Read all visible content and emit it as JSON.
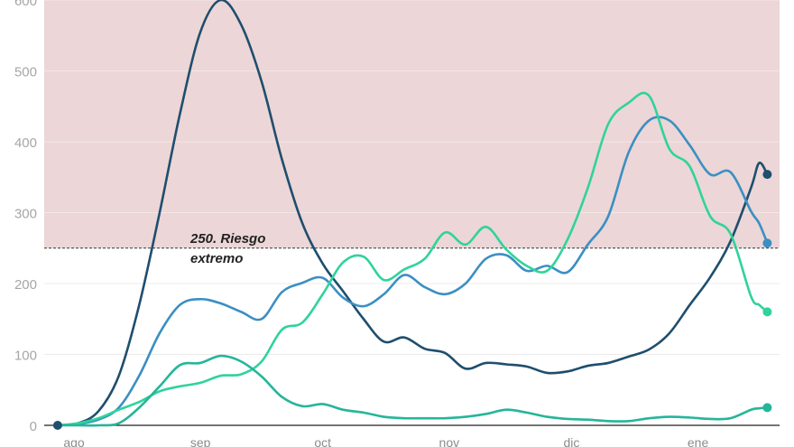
{
  "chart_data": {
    "type": "line",
    "title": "",
    "xlabel": "",
    "ylabel": "",
    "ylim": [
      0,
      600
    ],
    "yticks": [
      "0",
      "100",
      "200",
      "300",
      "400",
      "500",
      "600"
    ],
    "xticks": [
      {
        "label": "ago",
        "date": "08-01"
      },
      {
        "label": "sep",
        "date": "09-01"
      },
      {
        "label": "oct",
        "date": "10-01"
      },
      {
        "label": "nov",
        "date": "11-01"
      },
      {
        "label": "dic",
        "date": "12-01"
      },
      {
        "label": "ene",
        "date": "01-01"
      }
    ],
    "grid": true,
    "threshold": {
      "value": 250,
      "label_line1": "250. Riesgo",
      "label_line2": "extremo",
      "zone_color": "#ecd6d7"
    },
    "x": [
      "07-28",
      "08-02",
      "08-07",
      "08-12",
      "08-17",
      "08-22",
      "08-27",
      "09-01",
      "09-06",
      "09-11",
      "09-16",
      "09-21",
      "09-26",
      "10-01",
      "10-06",
      "10-11",
      "10-16",
      "10-21",
      "10-26",
      "10-31",
      "11-05",
      "11-10",
      "11-15",
      "11-20",
      "11-25",
      "11-30",
      "12-05",
      "12-10",
      "12-15",
      "12-20",
      "12-25",
      "12-30",
      "01-04",
      "01-09",
      "01-14",
      "01-16",
      "01-18"
    ],
    "series": [
      {
        "color": "#1f4e6e",
        "values": [
          0,
          3,
          20,
          70,
          170,
          300,
          440,
          555,
          600,
          565,
          485,
          375,
          285,
          228,
          189,
          150,
          118,
          124,
          108,
          102,
          80,
          88,
          86,
          83,
          74,
          76,
          84,
          88,
          97,
          107,
          130,
          170,
          209,
          260,
          335,
          370,
          354
        ]
      },
      {
        "color": "#3b8fc2",
        "values": [
          0,
          2,
          8,
          25,
          70,
          130,
          170,
          178,
          172,
          160,
          150,
          188,
          201,
          208,
          180,
          168,
          185,
          212,
          195,
          185,
          200,
          235,
          240,
          218,
          225,
          216,
          255,
          295,
          385,
          430,
          430,
          395,
          354,
          357,
          302,
          285,
          257
        ]
      },
      {
        "color": "#2fd39b",
        "values": [
          0,
          3,
          10,
          22,
          33,
          48,
          55,
          60,
          70,
          72,
          90,
          135,
          145,
          185,
          230,
          238,
          205,
          220,
          235,
          272,
          255,
          280,
          248,
          225,
          218,
          262,
          335,
          425,
          455,
          465,
          390,
          365,
          295,
          270,
          182,
          170,
          160
        ]
      },
      {
        "color": "#25b59a",
        "values": [
          0,
          0,
          0,
          3,
          25,
          55,
          85,
          88,
          98,
          90,
          69,
          40,
          27,
          30,
          22,
          18,
          12,
          10,
          10,
          10,
          12,
          16,
          22,
          18,
          12,
          9,
          8,
          6,
          6,
          10,
          12,
          11,
          9,
          10,
          22,
          24,
          25
        ]
      }
    ]
  }
}
